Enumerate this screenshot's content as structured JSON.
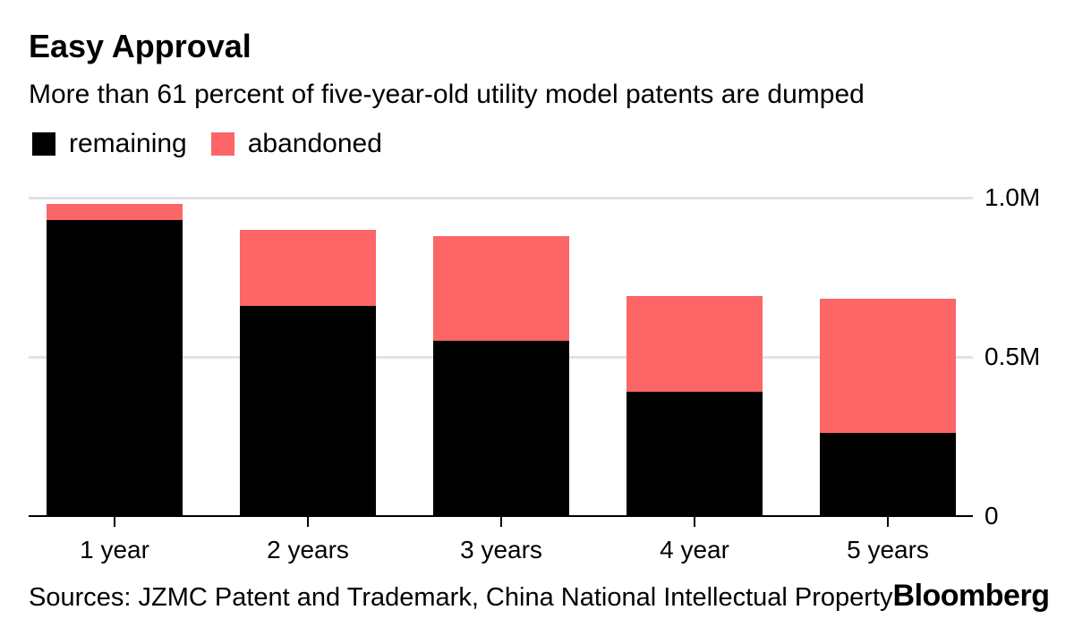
{
  "header": {
    "title": "Easy Approval",
    "subtitle": "More than 61 percent of five-year-old utility model patents are dumped"
  },
  "legend": {
    "items": [
      {
        "label": "remaining",
        "color": "#000000"
      },
      {
        "label": "abandoned",
        "color": "#FC6666"
      }
    ]
  },
  "chart_data": {
    "type": "bar",
    "stacked": true,
    "title": "Easy Approval",
    "subtitle": "More than 61 percent of five-year-old utility model patents are dumped",
    "unit": "patents (millions)",
    "categories": [
      "1 year",
      "2 years",
      "3 years",
      "4 year",
      "5 years"
    ],
    "series": [
      {
        "name": "remaining",
        "color": "#000000",
        "values": [
          0.93,
          0.66,
          0.55,
          0.39,
          0.26
        ]
      },
      {
        "name": "abandoned",
        "color": "#FC6666",
        "values": [
          0.05,
          0.24,
          0.33,
          0.3,
          0.42
        ]
      }
    ],
    "totals": [
      0.98,
      0.9,
      0.88,
      0.69,
      0.68
    ],
    "y_axis": {
      "min": 0,
      "max": 1.0,
      "ticks": [
        {
          "label": "1.0M",
          "value": 1.0
        },
        {
          "label": "0.5M",
          "value": 0.5
        },
        {
          "label": "0",
          "value": 0
        }
      ]
    },
    "grid": "horizontal",
    "legend_position": "top-left"
  },
  "footer": {
    "source": "Sources: JZMC Patent and Trademark, China National Intellectual Property",
    "brand": "Bloomberg"
  },
  "colors": {
    "remaining": "#000000",
    "abandoned": "#FC6666",
    "gridline": "#E2E2E2",
    "background": "#FFFFFF",
    "text": "#000000"
  }
}
